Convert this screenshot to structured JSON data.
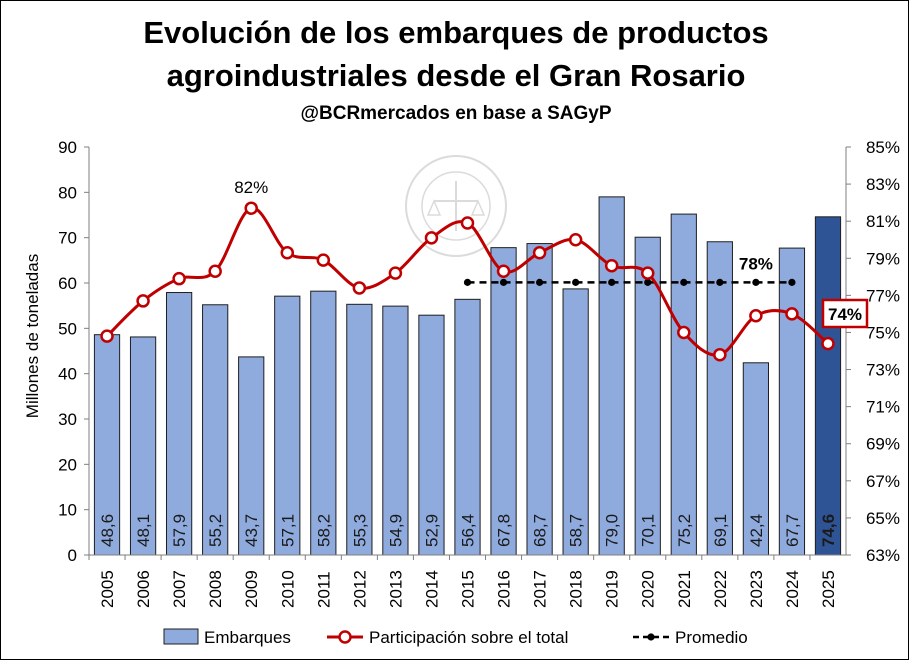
{
  "chart_data": {
    "type": "bar",
    "title": "Evolución de los embarques de productos agroindustriales desde el Gran Rosario",
    "title_lines": [
      "Evolución de los embarques de productos",
      "agroindustriales desde el Gran Rosario"
    ],
    "subtitle": "@BCRmercados en base a SAGyP",
    "ylabel": "Millones de toneladas",
    "ylim": [
      0,
      90
    ],
    "y_ticks": [
      "0",
      "10",
      "20",
      "30",
      "40",
      "50",
      "60",
      "70",
      "80",
      "90"
    ],
    "y2lim": [
      0.63,
      0.85
    ],
    "y2_ticks": [
      "63%",
      "65%",
      "67%",
      "69%",
      "71%",
      "73%",
      "75%",
      "77%",
      "79%",
      "81%",
      "83%",
      "85%"
    ],
    "categories": [
      "2005",
      "2006",
      "2007",
      "2008",
      "2009",
      "2010",
      "2011",
      "2012",
      "2013",
      "2014",
      "2015",
      "2016",
      "2017",
      "2018",
      "2019",
      "2020",
      "2021",
      "2022",
      "2023",
      "2024",
      "2025"
    ],
    "grid": false,
    "legend_position": "bottom",
    "colors": {
      "bar": "#8faadc",
      "bar_highlight": "#2f5496",
      "bar_edge": "#1f1f1f",
      "line": "#c00000",
      "average": "#000000"
    },
    "series": [
      {
        "name": "Embarques",
        "type": "bar",
        "axis": "left",
        "values": [
          48.6,
          48.1,
          57.9,
          55.2,
          43.7,
          57.1,
          58.2,
          55.3,
          54.9,
          52.9,
          56.4,
          67.8,
          68.7,
          58.7,
          79.0,
          70.1,
          75.2,
          69.1,
          42.4,
          67.7,
          74.6
        ],
        "labels": [
          "48,6",
          "48,1",
          "57,9",
          "55,2",
          "43,7",
          "57,1",
          "58,2",
          "55,3",
          "54,9",
          "52,9",
          "56,4",
          "67,8",
          "68,7",
          "58,7",
          "79,0",
          "70,1",
          "75,2",
          "69,1",
          "42,4",
          "67,7",
          "74,6"
        ],
        "highlight_index": 20
      },
      {
        "name": "Participación sobre el total",
        "type": "line",
        "axis": "right",
        "values": [
          0.748,
          0.767,
          0.779,
          0.783,
          0.817,
          0.793,
          0.789,
          0.774,
          0.782,
          0.801,
          0.809,
          0.783,
          0.793,
          0.8,
          0.786,
          0.782,
          0.75,
          0.738,
          0.759,
          0.76,
          0.744
        ]
      },
      {
        "name": "Promedio",
        "type": "line",
        "axis": "right",
        "start_index": 10,
        "end_index": 19,
        "value": 0.777
      }
    ],
    "annotations": [
      {
        "text": "82%",
        "index": 4,
        "series": "Participación sobre el total"
      },
      {
        "text": "78%",
        "index": 18,
        "series": "Promedio"
      },
      {
        "text": "74%",
        "index": 20,
        "series": "Participación sobre el total",
        "boxed": true
      }
    ]
  }
}
